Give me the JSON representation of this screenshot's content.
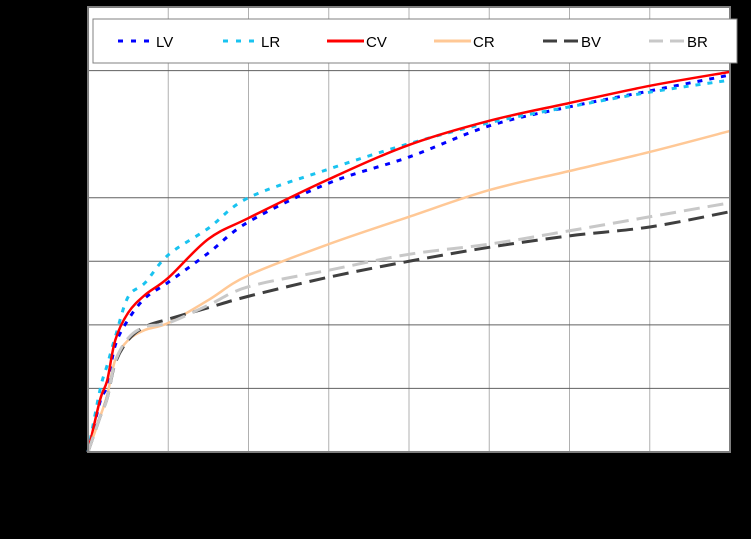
{
  "chart_data": {
    "type": "line",
    "title": "",
    "xlabel": "",
    "ylabel": "",
    "xlim": [
      0,
      8
    ],
    "ylim": [
      0,
      7
    ],
    "x_ticks": [
      0,
      1,
      2,
      3,
      4,
      5,
      6,
      7,
      8
    ],
    "y_ticks": [
      0,
      1,
      2,
      3,
      4,
      5,
      6,
      7
    ],
    "tick_labels_visible": false,
    "grid": true,
    "legend_position": "top-inside",
    "x": [
      0,
      0.15,
      0.24,
      0.34,
      0.5,
      0.71,
      1.0,
      1.5,
      2,
      3,
      4,
      5,
      6,
      7,
      8
    ],
    "series": [
      {
        "name": "LV",
        "color": "#0000ff",
        "style": "dotted",
        "values": [
          0,
          0.79,
          1.05,
          1.68,
          2.08,
          2.42,
          2.67,
          3.13,
          3.62,
          4.23,
          4.64,
          5.13,
          5.43,
          5.68,
          5.93
        ]
      },
      {
        "name": "LR",
        "color": "#19c3f0",
        "style": "dotted",
        "values": [
          0,
          0.98,
          1.37,
          1.81,
          2.44,
          2.66,
          3.1,
          3.52,
          4.0,
          4.45,
          4.85,
          5.18,
          5.43,
          5.66,
          5.85
        ]
      },
      {
        "name": "CV",
        "color": "#ff0000",
        "style": "solid",
        "values": [
          0,
          0.82,
          1.13,
          1.76,
          2.19,
          2.47,
          2.74,
          3.35,
          3.68,
          4.29,
          4.83,
          5.21,
          5.49,
          5.76,
          5.98
        ]
      },
      {
        "name": "CR",
        "color": "#ffc896",
        "style": "solid",
        "values": [
          0,
          0.55,
          0.9,
          1.45,
          1.76,
          1.92,
          2.03,
          2.39,
          2.78,
          3.27,
          3.7,
          4.12,
          4.42,
          4.72,
          5.05
        ]
      },
      {
        "name": "BV",
        "color": "#3f3f3f",
        "style": "dashed",
        "values": [
          0,
          0.55,
          0.85,
          1.4,
          1.76,
          1.97,
          2.09,
          2.27,
          2.45,
          2.75,
          3.0,
          3.22,
          3.4,
          3.54,
          3.78
        ]
      },
      {
        "name": "BR",
        "color": "#c8c8c8",
        "style": "dashed",
        "values": [
          0,
          0.55,
          0.85,
          1.42,
          1.79,
          1.97,
          2.03,
          2.31,
          2.6,
          2.86,
          3.11,
          3.27,
          3.48,
          3.7,
          3.92
        ]
      }
    ]
  },
  "legend": {
    "items": [
      {
        "label": "LV"
      },
      {
        "label": "LR"
      },
      {
        "label": "CV"
      },
      {
        "label": "CR"
      },
      {
        "label": "BV"
      },
      {
        "label": "BR"
      }
    ]
  }
}
